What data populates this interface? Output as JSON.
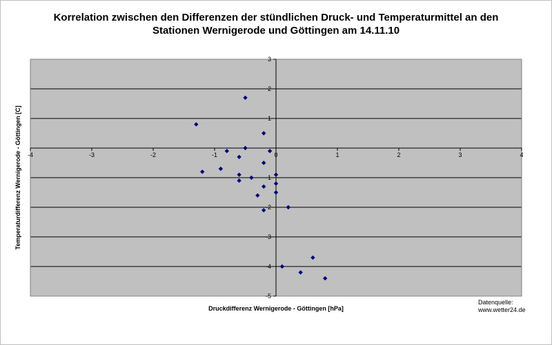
{
  "chart_data": {
    "type": "scatter",
    "title": "Korrelation zwischen den Differenzen der stündlichen Druck- und Temperaturmittel an den Stationen Wernigerode und Göttingen am 14.11.10",
    "title_lines": [
      "Korrelation zwischen den Differenzen der stündlichen Druck- und  Temperaturmittel an den",
      "Stationen Wernigerode und Göttingen am 14.11.10"
    ],
    "xlabel": "Druckdifferenz Wernigerode - Göttingen [hPa]",
    "ylabel": "Temperaturdifferenz Wernigerode - Göttingen [C]",
    "xlim": [
      -4,
      4
    ],
    "ylim": [
      -5,
      3
    ],
    "x_ticks": [
      -4,
      -3,
      -2,
      -1,
      0,
      1,
      2,
      3,
      4
    ],
    "y_ticks": [
      3,
      2,
      1,
      -1,
      -2,
      -3,
      -4,
      -5
    ],
    "grid": "horizontal",
    "plot_background": "#c0c0c0",
    "marker_color": "#000080",
    "series": [
      {
        "points": [
          {
            "x": -0.5,
            "y": 1.7
          },
          {
            "x": -1.3,
            "y": 0.8
          },
          {
            "x": -0.2,
            "y": 0.5
          },
          {
            "x": -0.5,
            "y": 0.0
          },
          {
            "x": -0.8,
            "y": -0.1
          },
          {
            "x": -0.1,
            "y": -0.1
          },
          {
            "x": -0.6,
            "y": -0.3
          },
          {
            "x": -0.2,
            "y": -0.5
          },
          {
            "x": -0.9,
            "y": -0.7
          },
          {
            "x": -1.2,
            "y": -0.8
          },
          {
            "x": -0.6,
            "y": -0.9
          },
          {
            "x": 0.0,
            "y": -0.9
          },
          {
            "x": -0.4,
            "y": -1.0
          },
          {
            "x": -0.6,
            "y": -1.1
          },
          {
            "x": 0.0,
            "y": -1.2
          },
          {
            "x": -0.2,
            "y": -1.3
          },
          {
            "x": 0.0,
            "y": -1.5
          },
          {
            "x": -0.3,
            "y": -1.6
          },
          {
            "x": 0.2,
            "y": -2.0
          },
          {
            "x": -0.2,
            "y": -2.1
          },
          {
            "x": 0.6,
            "y": -3.7
          },
          {
            "x": 0.1,
            "y": -4.0
          },
          {
            "x": 0.4,
            "y": -4.2
          },
          {
            "x": 0.8,
            "y": -4.4
          }
        ]
      }
    ]
  },
  "source_label": "Datenquelle:",
  "source_url": "www.wetter24.de"
}
